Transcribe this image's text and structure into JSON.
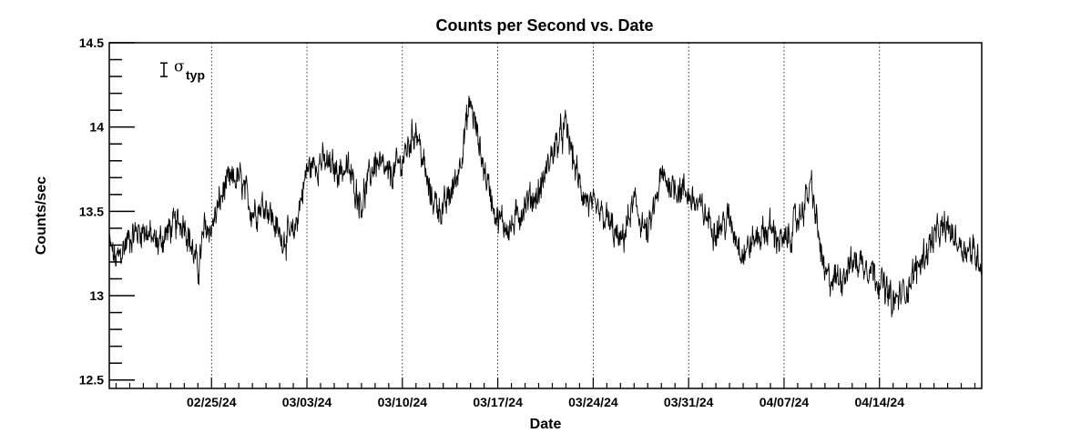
{
  "chart_data": {
    "type": "line",
    "title": "Counts per Second vs. Date",
    "xlabel": "Date",
    "ylabel": "Counts/sec",
    "xlim": [
      "2024-02-17T12:00",
      "2024-04-21T12:00"
    ],
    "ylim": [
      12.45,
      14.5
    ],
    "y_ticks": [
      12.5,
      13,
      13.5,
      14,
      14.5
    ],
    "y_tick_labels": [
      "12.5",
      "13",
      "13.5",
      "14",
      "14.5"
    ],
    "x_ticks": [
      "2024-02-25",
      "2024-03-03",
      "2024-03-10",
      "2024-03-17",
      "2024-03-24",
      "2024-03-31",
      "2024-04-07",
      "2024-04-14"
    ],
    "x_tick_labels": [
      "02/25/24",
      "03/03/24",
      "03/10/24",
      "03/17/24",
      "03/24/24",
      "03/31/24",
      "04/07/24",
      "04/14/24"
    ],
    "grid": {
      "x": true,
      "y": false
    },
    "legend": {
      "symbol": "σ",
      "subscript": "typ",
      "placement": "top-left",
      "error_bar_half_height": 0.04
    },
    "series": [
      {
        "color": "#000000",
        "x": [
          "2024-02-17T12:00",
          "2024-02-18",
          "2024-02-19",
          "2024-02-20",
          "2024-02-21",
          "2024-02-22",
          "2024-02-23",
          "2024-02-24",
          "2024-02-24T12:00",
          "2024-02-25",
          "2024-02-26",
          "2024-02-27",
          "2024-02-28",
          "2024-02-29",
          "2024-03-01",
          "2024-03-02",
          "2024-03-03",
          "2024-03-04",
          "2024-03-05",
          "2024-03-06",
          "2024-03-07",
          "2024-03-08",
          "2024-03-09",
          "2024-03-10",
          "2024-03-11",
          "2024-03-12",
          "2024-03-13",
          "2024-03-14",
          "2024-03-15",
          "2024-03-16",
          "2024-03-17",
          "2024-03-18",
          "2024-03-19",
          "2024-03-20",
          "2024-03-21",
          "2024-03-22",
          "2024-03-23",
          "2024-03-24",
          "2024-03-25",
          "2024-03-26",
          "2024-03-27",
          "2024-03-28",
          "2024-03-29",
          "2024-03-30",
          "2024-03-31",
          "2024-04-01",
          "2024-04-02",
          "2024-04-03",
          "2024-04-04",
          "2024-04-05",
          "2024-04-06",
          "2024-04-07",
          "2024-04-08",
          "2024-04-09",
          "2024-04-10",
          "2024-04-11",
          "2024-04-12",
          "2024-04-13",
          "2024-04-14",
          "2024-04-15",
          "2024-04-16",
          "2024-04-17",
          "2024-04-18",
          "2024-04-19",
          "2024-04-20",
          "2024-04-21",
          "2024-04-21T12:00"
        ],
        "y": [
          13.3,
          13.2,
          13.35,
          13.4,
          13.3,
          13.4,
          13.45,
          13.15,
          13.4,
          13.4,
          13.65,
          13.7,
          13.5,
          13.55,
          13.35,
          13.35,
          13.75,
          13.8,
          13.75,
          13.75,
          13.55,
          13.8,
          13.7,
          13.8,
          14.0,
          13.6,
          13.5,
          13.7,
          14.15,
          13.75,
          13.45,
          13.4,
          13.55,
          13.6,
          13.85,
          14.0,
          13.65,
          13.5,
          13.45,
          13.3,
          13.55,
          13.35,
          13.7,
          13.65,
          13.6,
          13.5,
          13.4,
          13.45,
          13.25,
          13.35,
          13.4,
          13.3,
          13.45,
          13.65,
          13.1,
          13.1,
          13.2,
          13.2,
          13.1,
          12.95,
          13.05,
          13.2,
          13.35,
          13.4,
          13.3,
          13.25,
          13.2
        ],
        "noise_amplitude": 0.08
      }
    ]
  }
}
